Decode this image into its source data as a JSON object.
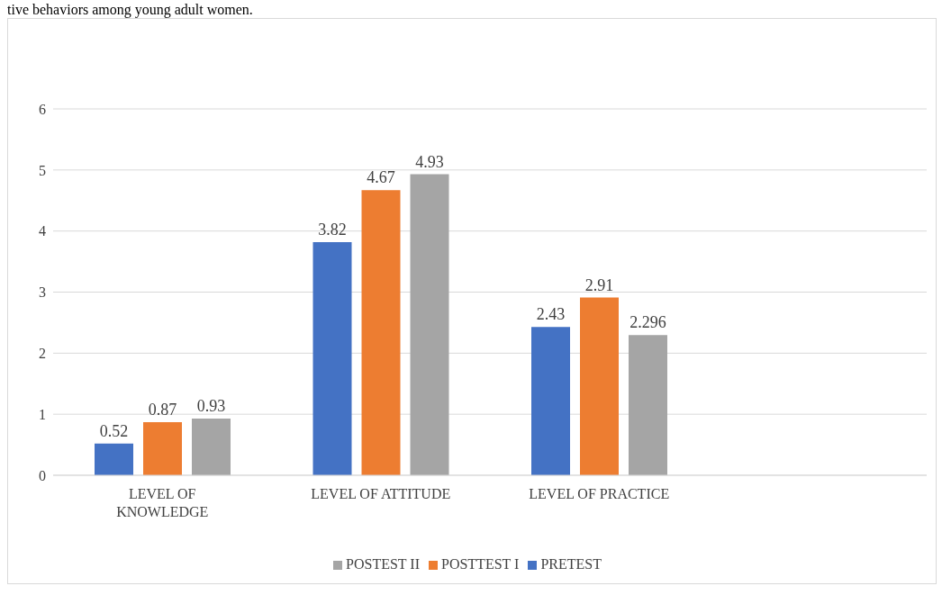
{
  "chart_data": {
    "type": "bar",
    "annotations": [
      "tive behaviors among young adult women."
    ],
    "categories": [
      "LEVEL OF KNOWLEDGE",
      "LEVEL OF ATTITUDE",
      "LEVEL OF PRACTICE",
      null
    ],
    "series": [
      {
        "name": "PRETEST",
        "color": "#4472c4",
        "values": [
          0.52,
          3.82,
          2.43,
          null
        ]
      },
      {
        "name": "POSTTEST I",
        "color": "#ed7d31",
        "values": [
          0.87,
          4.67,
          2.91,
          null
        ]
      },
      {
        "name": "POSTEST II",
        "color": "#a5a5a5",
        "values": [
          0.93,
          4.93,
          2.296,
          null
        ]
      }
    ],
    "ylim": [
      0,
      6
    ],
    "yticks": [
      0,
      1,
      2,
      3,
      4,
      5,
      6
    ],
    "grid": "y",
    "legend": "bottom",
    "data_labels": true
  }
}
